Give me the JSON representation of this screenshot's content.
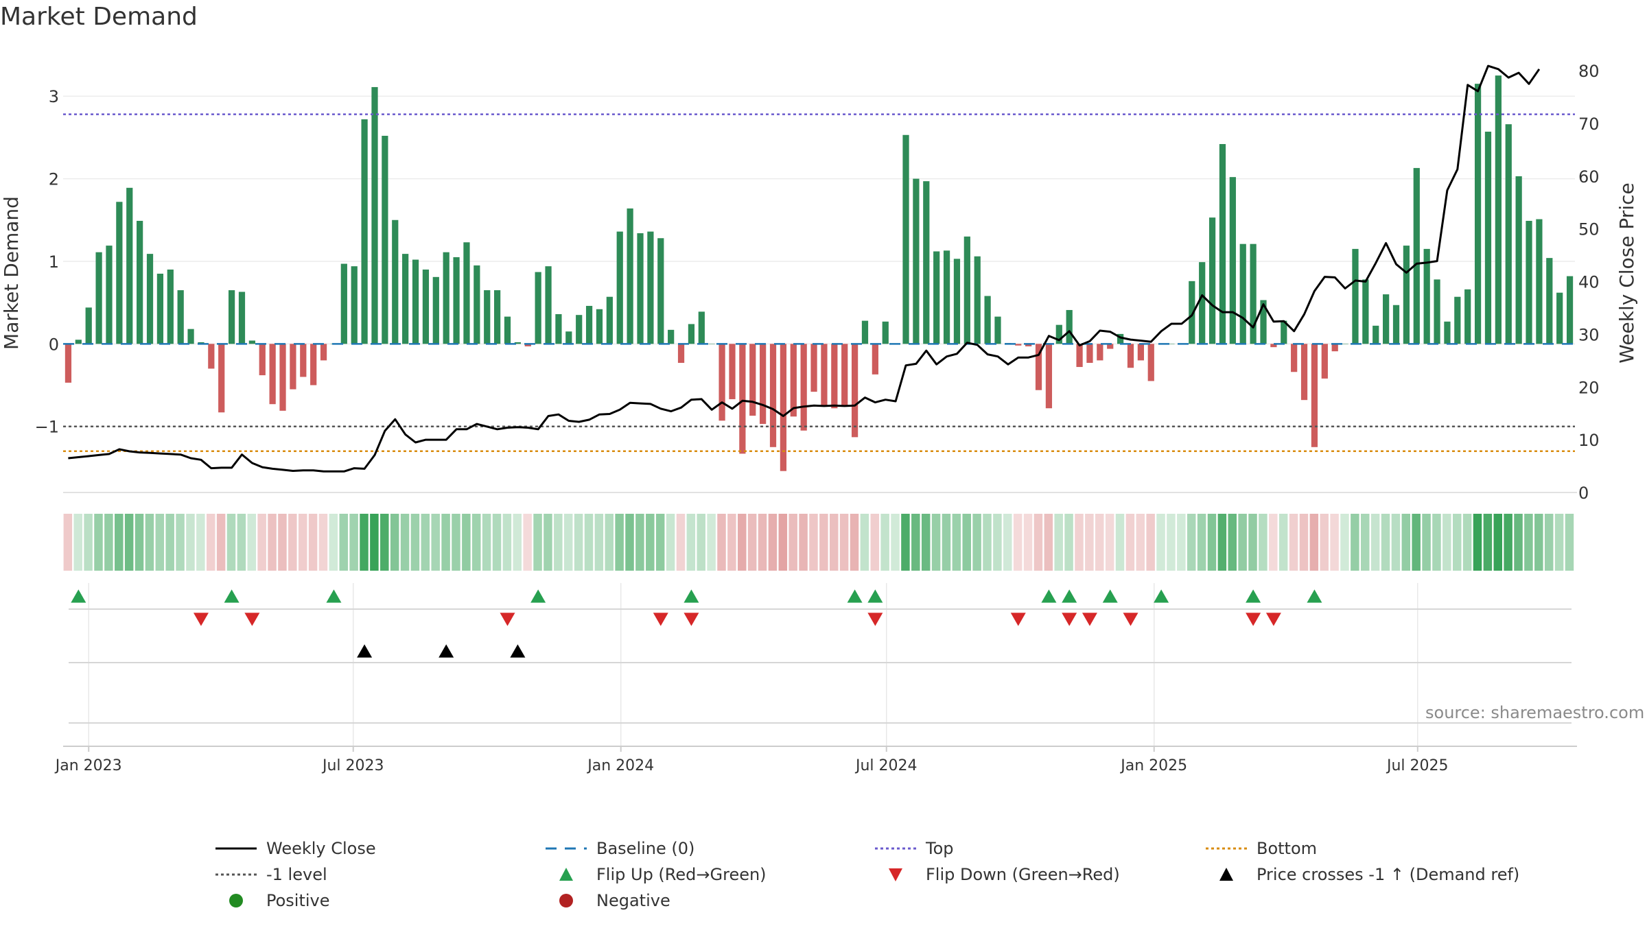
{
  "page": {
    "title": "Market Demand",
    "source": "source: sharemaestro.com"
  },
  "colors": {
    "positive": "#2e8b57",
    "negative": "#cd5c5c",
    "close": "#000000",
    "baseline": "#1f77b4",
    "top": "#6a5acd",
    "bottom": "#d98c0f",
    "minus1": "#555555",
    "flip_up": "#27a050",
    "flip_down": "#d62728",
    "cross": "#000000",
    "heat_pos": "#2e9e4f",
    "heat_neg": "#cd5c5c",
    "dot_pos": "#228b22",
    "dot_neg": "#b22222",
    "source_text": "#8a8a8a"
  },
  "legend": [
    {
      "key": "close",
      "label": "Weekly Close",
      "style": "solid"
    },
    {
      "key": "baseline",
      "label": "Baseline (0)",
      "style": "dash"
    },
    {
      "key": "top",
      "label": "Top",
      "style": "dot"
    },
    {
      "key": "bottom",
      "label": "Bottom",
      "style": "dot"
    },
    {
      "key": "minus1",
      "label": "-1 level",
      "style": "dot"
    },
    {
      "key": "flip_up",
      "label": "Flip Up (Red→Green)",
      "style": "tri_up"
    },
    {
      "key": "flip_down",
      "label": "Flip Down (Green→Red)",
      "style": "tri_down"
    },
    {
      "key": "cross",
      "label": "Price crosses -1 ↑ (Demand ref)",
      "style": "tri_up"
    },
    {
      "key": "dot_pos",
      "label": "Positive",
      "style": "dot_marker"
    },
    {
      "key": "dot_neg",
      "label": "Negative",
      "style": "dot_marker"
    }
  ],
  "chart_data": {
    "type": "bar",
    "title": "Market Demand",
    "ylabel": "Market Demand",
    "y2label": "Weekly Close Price",
    "ylim": [
      -1.8,
      3.5
    ],
    "y2lim": [
      0,
      83
    ],
    "yticks": [
      -1,
      0,
      1,
      2,
      3
    ],
    "yticklabels": [
      "−1",
      "0",
      "1",
      "2",
      "3"
    ],
    "y2ticks": [
      0,
      10,
      20,
      30,
      40,
      50,
      60,
      70,
      80
    ],
    "x_start_week": -2,
    "xticks": [
      {
        "week": 0,
        "label": "Jan 2023"
      },
      {
        "week": 25.9,
        "label": "Jul 2023"
      },
      {
        "week": 52.1,
        "label": "Jan 2024"
      },
      {
        "week": 78.1,
        "label": "Jul 2024"
      },
      {
        "week": 104.3,
        "label": "Jan 2025"
      },
      {
        "week": 130.1,
        "label": "Jul 2025"
      }
    ],
    "reference_lines": {
      "top": 2.78,
      "minus1": -1.0,
      "bottom": -1.3,
      "baseline": 0
    },
    "series": [
      {
        "name": "Market Demand",
        "values": [
          -0.47,
          0.05,
          0.44,
          1.11,
          1.19,
          1.72,
          1.89,
          1.49,
          1.09,
          0.85,
          0.9,
          0.65,
          0.18,
          0.02,
          -0.3,
          -0.83,
          0.65,
          0.63,
          0.04,
          -0.38,
          -0.73,
          -0.81,
          -0.55,
          -0.4,
          -0.5,
          -0.2,
          0.0,
          0.97,
          0.94,
          2.72,
          3.11,
          2.52,
          1.5,
          1.09,
          1.02,
          0.9,
          0.81,
          1.11,
          1.05,
          1.23,
          0.95,
          0.65,
          0.65,
          0.33,
          0.02,
          -0.03,
          0.87,
          0.94,
          0.36,
          0.15,
          0.35,
          0.46,
          0.42,
          0.57,
          1.36,
          1.64,
          1.34,
          1.36,
          1.28,
          0.17,
          -0.23,
          0.24,
          0.39,
          0.0,
          -0.93,
          -0.67,
          -1.33,
          -0.87,
          -0.97,
          -1.25,
          -1.54,
          -0.88,
          -1.05,
          -0.58,
          -0.76,
          -0.78,
          -0.76,
          -1.13,
          0.28,
          -0.37,
          0.27,
          0.0,
          2.53,
          2.0,
          1.97,
          1.12,
          1.13,
          1.03,
          1.3,
          1.06,
          0.58,
          0.33,
          0.01,
          -0.02,
          -0.03,
          -0.56,
          -0.78,
          0.23,
          0.41,
          -0.28,
          -0.23,
          -0.2,
          -0.06,
          0.12,
          -0.29,
          -0.2,
          -0.45,
          0.0,
          0.0,
          0.0,
          0.76,
          0.99,
          1.53,
          2.42,
          2.02,
          1.21,
          1.21,
          0.53,
          -0.04,
          0.28,
          -0.34,
          -0.68,
          -1.25,
          -0.42,
          -0.09,
          0.0,
          1.15,
          0.78,
          0.22,
          0.6,
          0.47,
          1.19,
          2.13,
          1.15,
          0.78,
          0.27,
          0.57,
          0.66,
          3.15,
          2.57,
          3.25,
          2.66,
          2.03,
          1.49,
          1.51,
          1.04,
          0.62,
          0.82
        ]
      },
      {
        "name": "Weekly Close",
        "axis": "right",
        "values": [
          6.5,
          6.7,
          6.9,
          7.1,
          7.3,
          8.2,
          7.8,
          7.6,
          7.5,
          7.4,
          7.3,
          7.2,
          6.5,
          6.2,
          4.6,
          4.7,
          4.7,
          7.2,
          5.6,
          4.8,
          4.5,
          4.3,
          4.1,
          4.2,
          4.2,
          4.0,
          4.0,
          4.0,
          4.6,
          4.5,
          7.1,
          11.7,
          13.9,
          11.0,
          9.5,
          10.0,
          10.0,
          10.0,
          12.0,
          12.0,
          13.0,
          12.5,
          12.0,
          12.3,
          12.4,
          12.3,
          12.0,
          14.5,
          14.8,
          13.6,
          13.4,
          13.8,
          14.8,
          14.9,
          15.7,
          17.0,
          16.9,
          16.8,
          15.9,
          15.4,
          16.1,
          17.6,
          17.7,
          15.7,
          17.1,
          15.9,
          17.4,
          17.2,
          16.6,
          15.8,
          14.5,
          16.0,
          16.3,
          16.5,
          16.4,
          16.5,
          16.4,
          16.5,
          18.0,
          17.1,
          17.6,
          17.3,
          24.1,
          24.4,
          26.9,
          24.3,
          25.8,
          26.3,
          28.4,
          28.0,
          26.2,
          25.8,
          24.3,
          25.6,
          25.6,
          26.1,
          29.7,
          28.9,
          30.6,
          27.9,
          28.7,
          30.7,
          30.5,
          29.4,
          29.0,
          28.8,
          28.6,
          30.6,
          32.0,
          32.0,
          33.6,
          37.4,
          35.5,
          34.2,
          34.2,
          33.1,
          31.3,
          35.7,
          32.4,
          32.5,
          30.6,
          33.8,
          38.2,
          40.9,
          40.8,
          38.7,
          40.2,
          40.0,
          43.5,
          47.3,
          43.3,
          41.7,
          43.4,
          43.6,
          43.9,
          57.3,
          61.3,
          77.3,
          76.1,
          80.9,
          80.3,
          78.7,
          79.6,
          77.5,
          80.3
        ]
      }
    ],
    "flip_up_weeks": [
      -1.0,
      14.0,
      24.0,
      44.0,
      59.0,
      75.0,
      77.0,
      94.0,
      96.0,
      100.0,
      105.0,
      114.0,
      120.0
    ],
    "flip_down_weeks": [
      11.0,
      16.0,
      41.0,
      56.0,
      59.0,
      77.0,
      91.0,
      96.0,
      98.0,
      102.0,
      114.0,
      116.0
    ],
    "cross_weeks": [
      27.0,
      35.0,
      42.0
    ]
  }
}
